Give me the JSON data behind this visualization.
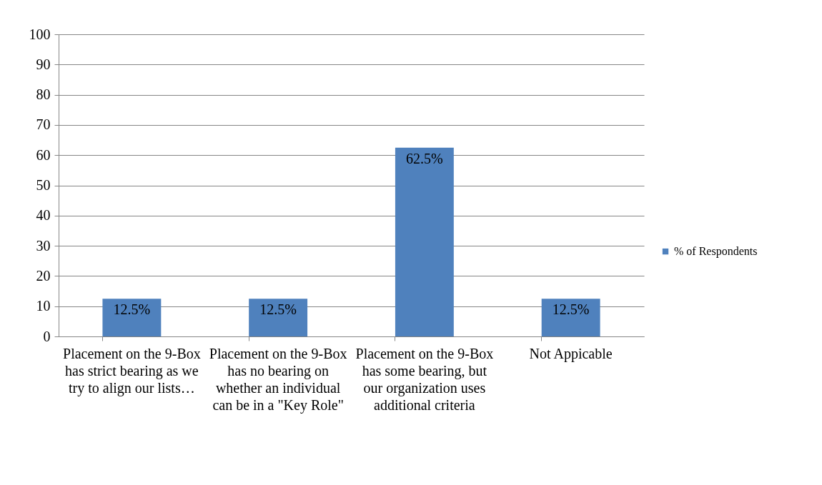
{
  "chart_data": {
    "type": "bar",
    "categories": [
      "Placement on the 9-Box has strict bearing as we try to align our lists…",
      "Placement on the 9-Box  has no bearing on whether an individual can be in a \"Key Role\"",
      "Placement on the 9-Box has some bearing, but our organization uses additional criteria",
      "Not Appicable"
    ],
    "series": [
      {
        "name": "% of Respondents",
        "color": "#4f81bd",
        "values": [
          12.5,
          12.5,
          62.5,
          12.5
        ],
        "value_labels": [
          "12.5%",
          "12.5%",
          "62.5%",
          "12.5%"
        ]
      }
    ],
    "ylim": [
      0,
      100
    ],
    "yticks": [
      0,
      10,
      20,
      30,
      40,
      50,
      60,
      70,
      80,
      90,
      100
    ],
    "grid": "y",
    "legend": "right"
  }
}
